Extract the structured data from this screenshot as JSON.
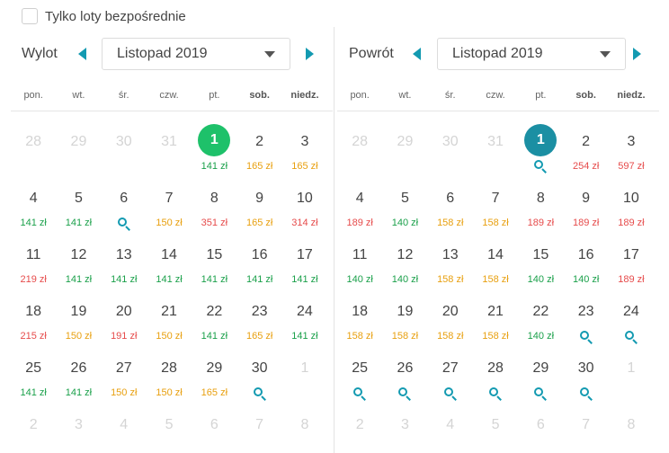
{
  "direct_only": {
    "label": "Tylko loty bezpośrednie",
    "checked": false
  },
  "weekdays": [
    {
      "label": "pon.",
      "bold": false
    },
    {
      "label": "wt.",
      "bold": false
    },
    {
      "label": "śr.",
      "bold": false
    },
    {
      "label": "czw.",
      "bold": false
    },
    {
      "label": "pt.",
      "bold": false
    },
    {
      "label": "sob.",
      "bold": true
    },
    {
      "label": "niedz.",
      "bold": true
    }
  ],
  "colors": {
    "accent": "#139ab1",
    "green": "#1aa04a",
    "orange": "#e8a010",
    "red": "#e64b4b",
    "selected_departure": "#1ec16a",
    "selected_return": "#1b8fa3"
  },
  "departure": {
    "label": "Wylot",
    "month": "Listopad 2019",
    "selected_day": "1",
    "days": [
      {
        "n": "28",
        "muted": true
      },
      {
        "n": "29",
        "muted": true
      },
      {
        "n": "30",
        "muted": true
      },
      {
        "n": "31",
        "muted": true
      },
      {
        "n": "1",
        "price": "141 zł",
        "c": "green",
        "sel": true
      },
      {
        "n": "2",
        "price": "165 zł",
        "c": "orange"
      },
      {
        "n": "3",
        "price": "165 zł",
        "c": "orange"
      },
      {
        "n": "4",
        "price": "141 zł",
        "c": "green"
      },
      {
        "n": "5",
        "price": "141 zł",
        "c": "green"
      },
      {
        "n": "6",
        "search": true
      },
      {
        "n": "7",
        "price": "150 zł",
        "c": "orange"
      },
      {
        "n": "8",
        "price": "351 zł",
        "c": "red"
      },
      {
        "n": "9",
        "price": "165 zł",
        "c": "orange"
      },
      {
        "n": "10",
        "price": "314 zł",
        "c": "red"
      },
      {
        "n": "11",
        "price": "219 zł",
        "c": "red"
      },
      {
        "n": "12",
        "price": "141 zł",
        "c": "green"
      },
      {
        "n": "13",
        "price": "141 zł",
        "c": "green"
      },
      {
        "n": "14",
        "price": "141 zł",
        "c": "green"
      },
      {
        "n": "15",
        "price": "141 zł",
        "c": "green"
      },
      {
        "n": "16",
        "price": "141 zł",
        "c": "green"
      },
      {
        "n": "17",
        "price": "141 zł",
        "c": "green"
      },
      {
        "n": "18",
        "price": "215 zł",
        "c": "red"
      },
      {
        "n": "19",
        "price": "150 zł",
        "c": "orange"
      },
      {
        "n": "20",
        "price": "191 zł",
        "c": "red"
      },
      {
        "n": "21",
        "price": "150 zł",
        "c": "orange"
      },
      {
        "n": "22",
        "price": "141 zł",
        "c": "green"
      },
      {
        "n": "23",
        "price": "165 zł",
        "c": "orange"
      },
      {
        "n": "24",
        "price": "141 zł",
        "c": "green"
      },
      {
        "n": "25",
        "price": "141 zł",
        "c": "green"
      },
      {
        "n": "26",
        "price": "141 zł",
        "c": "green"
      },
      {
        "n": "27",
        "price": "150 zł",
        "c": "orange"
      },
      {
        "n": "28",
        "price": "150 zł",
        "c": "orange"
      },
      {
        "n": "29",
        "price": "165 zł",
        "c": "orange"
      },
      {
        "n": "30",
        "search": true
      },
      {
        "n": "1",
        "muted": true
      },
      {
        "n": "2",
        "muted": true
      },
      {
        "n": "3",
        "muted": true
      },
      {
        "n": "4",
        "muted": true
      },
      {
        "n": "5",
        "muted": true
      },
      {
        "n": "6",
        "muted": true
      },
      {
        "n": "7",
        "muted": true
      },
      {
        "n": "8",
        "muted": true
      }
    ]
  },
  "return": {
    "label": "Powrót",
    "month": "Listopad 2019",
    "selected_day": "1",
    "days": [
      {
        "n": "28",
        "muted": true
      },
      {
        "n": "29",
        "muted": true
      },
      {
        "n": "30",
        "muted": true
      },
      {
        "n": "31",
        "muted": true
      },
      {
        "n": "1",
        "search": true,
        "sel": true
      },
      {
        "n": "2",
        "price": "254 zł",
        "c": "red"
      },
      {
        "n": "3",
        "price": "597 zł",
        "c": "red"
      },
      {
        "n": "4",
        "price": "189 zł",
        "c": "red"
      },
      {
        "n": "5",
        "price": "140 zł",
        "c": "green"
      },
      {
        "n": "6",
        "price": "158 zł",
        "c": "orange"
      },
      {
        "n": "7",
        "price": "158 zł",
        "c": "orange"
      },
      {
        "n": "8",
        "price": "189 zł",
        "c": "red"
      },
      {
        "n": "9",
        "price": "189 zł",
        "c": "red"
      },
      {
        "n": "10",
        "price": "189 zł",
        "c": "red"
      },
      {
        "n": "11",
        "price": "140 zł",
        "c": "green"
      },
      {
        "n": "12",
        "price": "140 zł",
        "c": "green"
      },
      {
        "n": "13",
        "price": "158 zł",
        "c": "orange"
      },
      {
        "n": "14",
        "price": "158 zł",
        "c": "orange"
      },
      {
        "n": "15",
        "price": "140 zł",
        "c": "green"
      },
      {
        "n": "16",
        "price": "140 zł",
        "c": "green"
      },
      {
        "n": "17",
        "price": "189 zł",
        "c": "red"
      },
      {
        "n": "18",
        "price": "158 zł",
        "c": "orange"
      },
      {
        "n": "19",
        "price": "158 zł",
        "c": "orange"
      },
      {
        "n": "20",
        "price": "158 zł",
        "c": "orange"
      },
      {
        "n": "21",
        "price": "158 zł",
        "c": "orange"
      },
      {
        "n": "22",
        "price": "140 zł",
        "c": "green"
      },
      {
        "n": "23",
        "search": true
      },
      {
        "n": "24",
        "search": true
      },
      {
        "n": "25",
        "search": true
      },
      {
        "n": "26",
        "search": true
      },
      {
        "n": "27",
        "search": true
      },
      {
        "n": "28",
        "search": true
      },
      {
        "n": "29",
        "search": true
      },
      {
        "n": "30",
        "search": true
      },
      {
        "n": "1",
        "muted": true
      },
      {
        "n": "2",
        "muted": true
      },
      {
        "n": "3",
        "muted": true
      },
      {
        "n": "4",
        "muted": true
      },
      {
        "n": "5",
        "muted": true
      },
      {
        "n": "6",
        "muted": true
      },
      {
        "n": "7",
        "muted": true
      },
      {
        "n": "8",
        "muted": true
      }
    ]
  }
}
